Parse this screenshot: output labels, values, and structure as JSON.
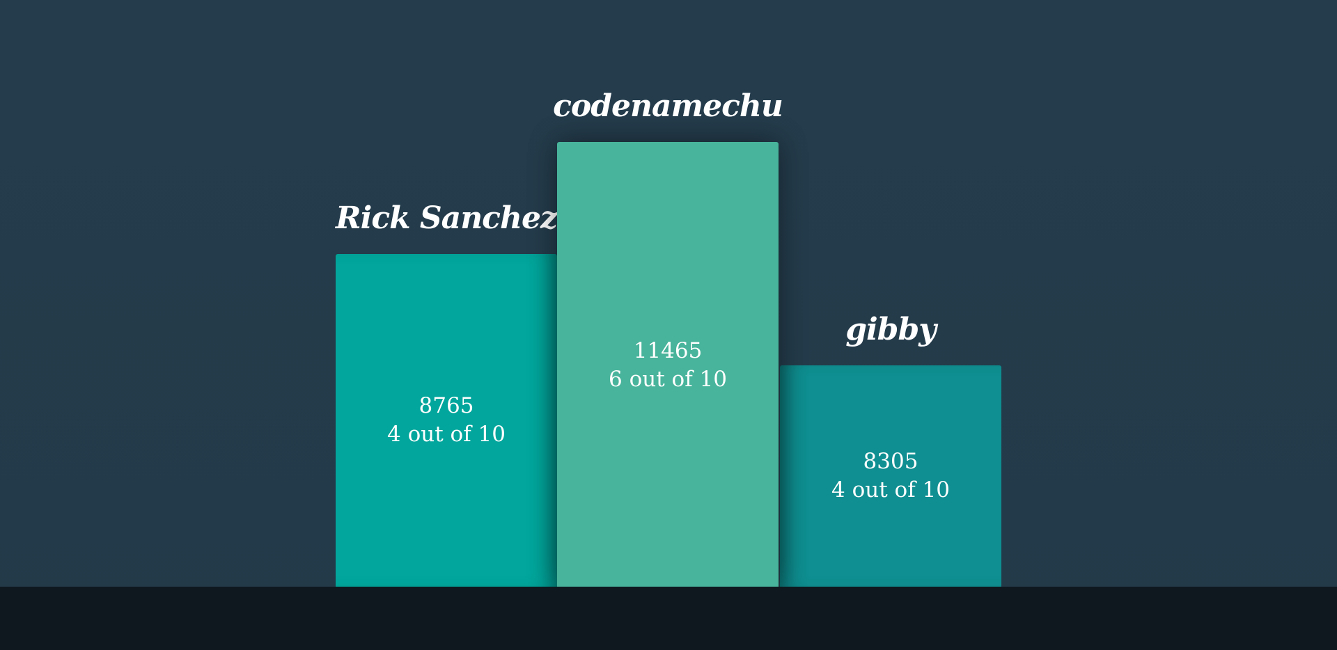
{
  "podium": {
    "left": {
      "name": "Rick Sanchez",
      "score": "8765",
      "rating": "4 out of 10"
    },
    "center": {
      "name": "codenamechu",
      "score": "11465",
      "rating": "6 out of 10"
    },
    "right": {
      "name": "gibby",
      "score": "8305",
      "rating": "4 out of 10"
    }
  },
  "colors": {
    "background": "#243c4c",
    "floor": "#0e181e",
    "left_block": "#02a69c",
    "center_block": "#48b49b",
    "right_block": "#0f8f91",
    "text": "#ffffff"
  }
}
